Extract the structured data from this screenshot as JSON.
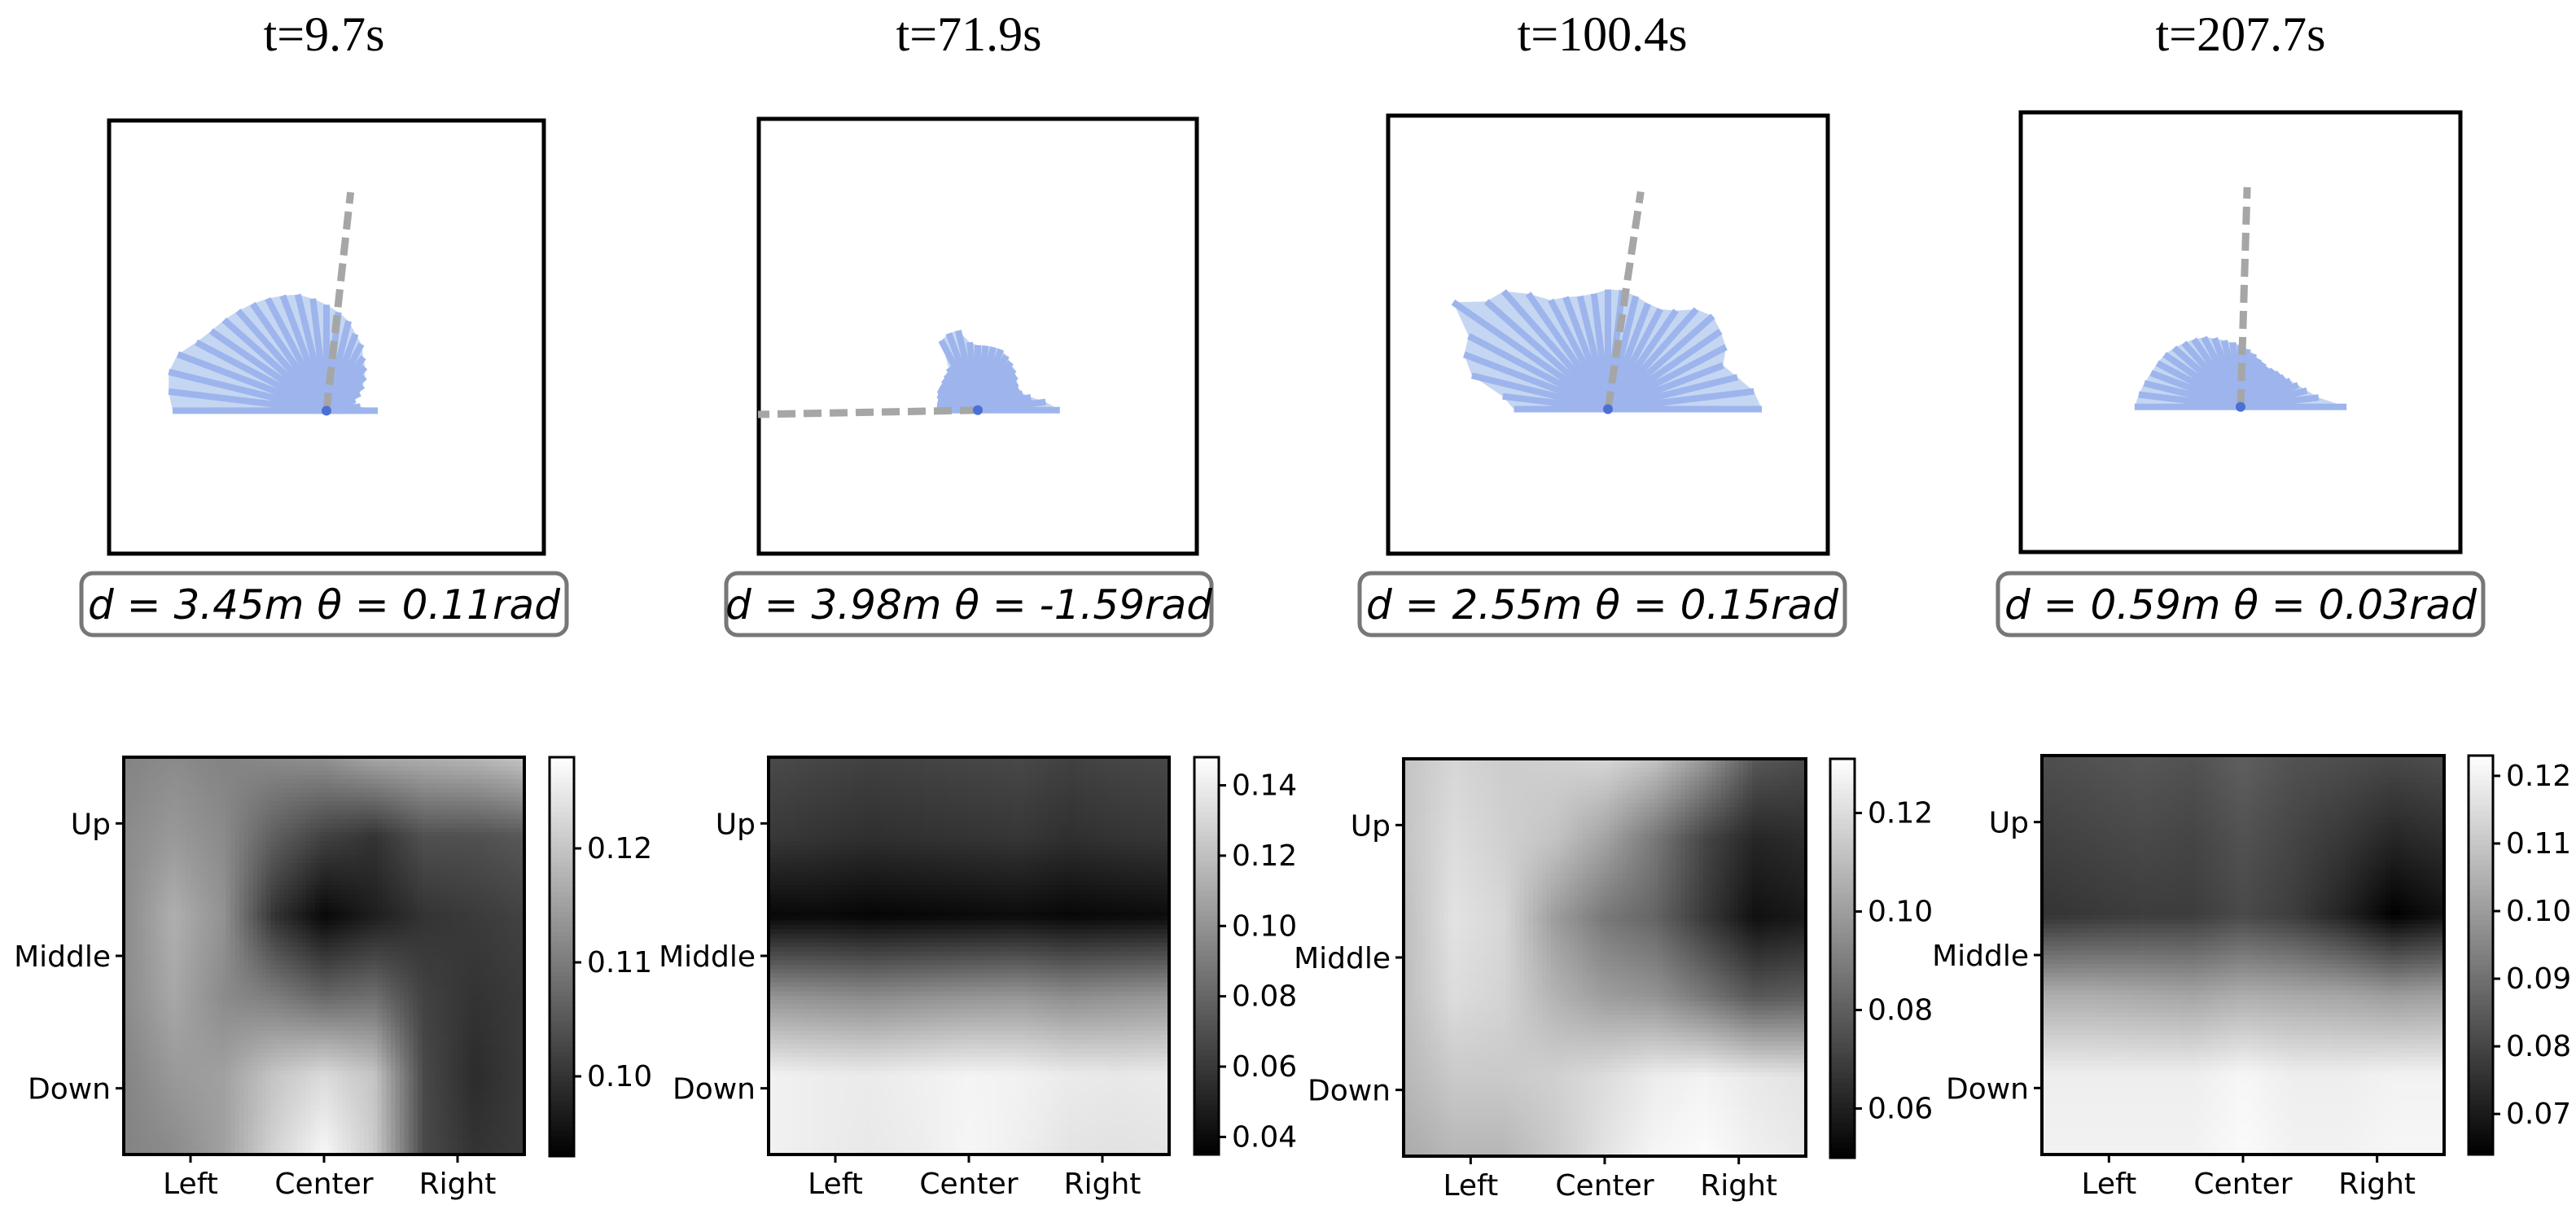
{
  "panels": [
    {
      "title": "t=9.7s",
      "caption": "d = 3.45m θ = 0.11rad",
      "lidar": {
        "ranges": [
          0.3,
          0.2,
          0.16,
          0.18,
          0.22,
          0.26,
          0.3,
          0.34,
          0.38,
          0.44,
          0.48,
          0.54,
          0.58,
          0.62,
          0.66,
          0.7,
          0.72,
          0.74,
          0.76,
          0.78,
          0.8,
          0.82,
          0.86,
          0.93,
          0.95,
          0.93,
          0.9
        ],
        "target_angle_rad": 0.11,
        "target_distance_m": 3.45
      },
      "heatmap": {
        "xticks": [
          "Left",
          "Center",
          "Right"
        ],
        "yticks": [
          "Up",
          "Middle",
          "Down"
        ],
        "colorbar_ticks": [
          "0.12",
          "0.11",
          "0.10"
        ],
        "colorbar_tick_values": [
          0.12,
          0.11,
          0.1
        ],
        "vmin": 0.093,
        "vmax": 0.128,
        "grid": [
          [
            0.111,
            0.112,
            0.111,
            0.112,
            0.113,
            0.116,
            0.117,
            0.118,
            0.12
          ],
          [
            0.112,
            0.114,
            0.112,
            0.106,
            0.102,
            0.1,
            0.104,
            0.104,
            0.105
          ],
          [
            0.112,
            0.117,
            0.113,
            0.1,
            0.094,
            0.097,
            0.1,
            0.101,
            0.102
          ],
          [
            0.112,
            0.116,
            0.112,
            0.11,
            0.107,
            0.108,
            0.102,
            0.1,
            0.101
          ],
          [
            0.111,
            0.114,
            0.115,
            0.12,
            0.123,
            0.12,
            0.103,
            0.099,
            0.101
          ],
          [
            0.111,
            0.112,
            0.115,
            0.122,
            0.127,
            0.121,
            0.103,
            0.1,
            0.101
          ]
        ]
      }
    },
    {
      "title": "t=71.9s",
      "caption": "d = 3.98m θ = -1.59rad",
      "lidar": {
        "ranges": [
          0.48,
          0.4,
          0.32,
          0.28,
          0.27,
          0.28,
          0.3,
          0.32,
          0.34,
          0.36,
          0.38,
          0.38,
          0.38,
          0.38,
          0.4,
          0.48,
          0.48,
          0.46,
          0.3,
          0.28,
          0.27,
          0.26,
          0.26,
          0.25,
          0.24,
          0.24,
          0.24
        ],
        "target_angle_rad": -1.59,
        "target_distance_m": 3.98
      },
      "heatmap": {
        "xticks": [
          "Left",
          "Center",
          "Right"
        ],
        "yticks": [
          "Up",
          "Middle",
          "Down"
        ],
        "colorbar_ticks": [
          "0.14",
          "0.12",
          "0.10",
          "0.08",
          "0.06",
          "0.04"
        ],
        "colorbar_tick_values": [
          0.14,
          0.12,
          0.1,
          0.08,
          0.06,
          0.04
        ],
        "vmin": 0.035,
        "vmax": 0.148,
        "grid": [
          [
            0.068,
            0.066,
            0.064,
            0.065,
            0.066,
            0.067,
            0.064,
            0.066,
            0.067
          ],
          [
            0.06,
            0.058,
            0.056,
            0.057,
            0.058,
            0.059,
            0.056,
            0.058,
            0.059
          ],
          [
            0.038,
            0.039,
            0.037,
            0.038,
            0.039,
            0.04,
            0.038,
            0.039,
            0.04
          ],
          [
            0.1,
            0.098,
            0.096,
            0.098,
            0.1,
            0.101,
            0.097,
            0.099,
            0.101
          ],
          [
            0.142,
            0.14,
            0.139,
            0.141,
            0.143,
            0.142,
            0.139,
            0.138,
            0.139
          ],
          [
            0.142,
            0.14,
            0.138,
            0.14,
            0.144,
            0.141,
            0.136,
            0.135,
            0.136
          ]
        ]
      }
    },
    {
      "title": "t=100.4s",
      "caption": "d = 2.55m θ = 0.15rad",
      "lidar": {
        "ranges": [
          0.9,
          0.86,
          0.78,
          0.72,
          0.78,
          0.8,
          0.82,
          0.78,
          0.7,
          0.66,
          0.66,
          0.68,
          0.7,
          0.7,
          0.68,
          0.68,
          0.7,
          0.72,
          0.82,
          0.92,
          0.95,
          1.1,
          0.92,
          0.9,
          0.82,
          0.62,
          0.55
        ],
        "target_angle_rad": 0.15,
        "target_distance_m": 2.55
      },
      "heatmap": {
        "xticks": [
          "Left",
          "Center",
          "Right"
        ],
        "yticks": [
          "Up",
          "Middle",
          "Down"
        ],
        "colorbar_ticks": [
          "0.12",
          "0.10",
          "0.08",
          "0.06"
        ],
        "colorbar_tick_values": [
          0.12,
          0.1,
          0.08,
          0.06
        ],
        "vmin": 0.05,
        "vmax": 0.131,
        "grid": [
          [
            0.112,
            0.118,
            0.115,
            0.116,
            0.118,
            0.112,
            0.098,
            0.078,
            0.074
          ],
          [
            0.112,
            0.12,
            0.116,
            0.112,
            0.102,
            0.088,
            0.072,
            0.062,
            0.064
          ],
          [
            0.11,
            0.122,
            0.118,
            0.1,
            0.088,
            0.082,
            0.068,
            0.055,
            0.058
          ],
          [
            0.11,
            0.12,
            0.117,
            0.107,
            0.1,
            0.097,
            0.088,
            0.078,
            0.08
          ],
          [
            0.108,
            0.114,
            0.114,
            0.116,
            0.12,
            0.125,
            0.127,
            0.124,
            0.122
          ],
          [
            0.104,
            0.108,
            0.108,
            0.114,
            0.122,
            0.128,
            0.13,
            0.126,
            0.124
          ]
        ]
      }
    },
    {
      "title": "t=207.7s",
      "caption": "d = 0.59m θ = 0.03rad",
      "lidar": {
        "ranges": [
          0.62,
          0.46,
          0.4,
          0.36,
          0.33,
          0.31,
          0.3,
          0.29,
          0.28,
          0.29,
          0.3,
          0.32,
          0.34,
          0.36,
          0.38,
          0.4,
          0.43,
          0.46,
          0.48,
          0.5,
          0.52,
          0.54,
          0.55,
          0.56,
          0.58,
          0.6,
          0.62
        ],
        "target_angle_rad": 0.03,
        "target_distance_m": 0.59
      },
      "heatmap": {
        "xticks": [
          "Left",
          "Center",
          "Right"
        ],
        "yticks": [
          "Up",
          "Middle",
          "Down"
        ],
        "colorbar_ticks": [
          "0.12",
          "0.11",
          "0.10",
          "0.09",
          "0.08",
          "0.07"
        ],
        "colorbar_tick_values": [
          0.12,
          0.11,
          0.1,
          0.09,
          0.08,
          0.07
        ],
        "vmin": 0.064,
        "vmax": 0.123,
        "grid": [
          [
            0.082,
            0.083,
            0.084,
            0.083,
            0.086,
            0.083,
            0.082,
            0.081,
            0.082
          ],
          [
            0.079,
            0.08,
            0.081,
            0.08,
            0.083,
            0.08,
            0.077,
            0.073,
            0.075
          ],
          [
            0.076,
            0.077,
            0.078,
            0.078,
            0.081,
            0.078,
            0.072,
            0.064,
            0.068
          ],
          [
            0.104,
            0.104,
            0.103,
            0.102,
            0.104,
            0.103,
            0.102,
            0.1,
            0.101
          ],
          [
            0.119,
            0.119,
            0.119,
            0.119,
            0.121,
            0.119,
            0.119,
            0.12,
            0.12
          ],
          [
            0.12,
            0.12,
            0.12,
            0.12,
            0.122,
            0.12,
            0.12,
            0.121,
            0.121
          ]
        ]
      }
    }
  ],
  "colors": {
    "lidar_fill": "#c5d6f2",
    "lidar_ray": "#9db5ec",
    "lidar_origin": "#4c6fd6",
    "target_line": "#a6a6a6",
    "caption_border": "#777777",
    "frame": "#000000"
  },
  "chart_data": [
    {
      "type": "heatmap",
      "title": "t=9.7s",
      "x_categories": [
        "Left",
        "Center",
        "Right"
      ],
      "y_categories": [
        "Up",
        "Middle",
        "Down"
      ],
      "colorbar_range": [
        0.093,
        0.128
      ],
      "colorbar_ticks": [
        0.12,
        0.11,
        0.1
      ],
      "annotation": "d = 3.45m θ = 0.11rad"
    },
    {
      "type": "heatmap",
      "title": "t=71.9s",
      "x_categories": [
        "Left",
        "Center",
        "Right"
      ],
      "y_categories": [
        "Up",
        "Middle",
        "Down"
      ],
      "colorbar_range": [
        0.035,
        0.148
      ],
      "colorbar_ticks": [
        0.14,
        0.12,
        0.1,
        0.08,
        0.06,
        0.04
      ],
      "annotation": "d = 3.98m θ = -1.59rad"
    },
    {
      "type": "heatmap",
      "title": "t=100.4s",
      "x_categories": [
        "Left",
        "Center",
        "Right"
      ],
      "y_categories": [
        "Up",
        "Middle",
        "Down"
      ],
      "colorbar_range": [
        0.05,
        0.131
      ],
      "colorbar_ticks": [
        0.12,
        0.1,
        0.08,
        0.06
      ],
      "annotation": "d = 2.55m θ = 0.15rad"
    },
    {
      "type": "heatmap",
      "title": "t=207.7s",
      "x_categories": [
        "Left",
        "Center",
        "Right"
      ],
      "y_categories": [
        "Up",
        "Middle",
        "Down"
      ],
      "colorbar_range": [
        0.064,
        0.123
      ],
      "colorbar_ticks": [
        0.12,
        0.11,
        0.1,
        0.09,
        0.08,
        0.07
      ],
      "annotation": "d = 0.59m θ = 0.03rad"
    }
  ]
}
